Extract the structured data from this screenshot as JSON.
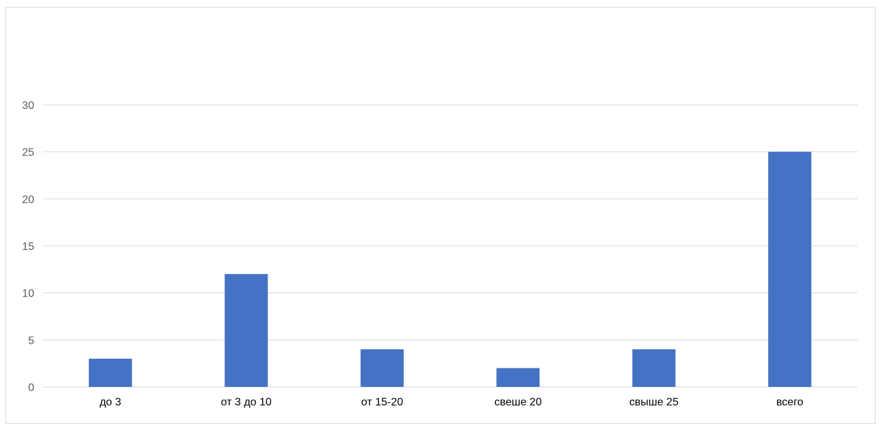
{
  "chart_data": {
    "type": "bar",
    "title": "",
    "xlabel": "",
    "ylabel": "",
    "categories": [
      "до 3",
      "от 3 до 10",
      "от 15-20",
      "свеше 20",
      "свыше 25",
      "всего"
    ],
    "values": [
      3,
      12,
      4,
      2,
      4,
      25
    ],
    "ylim": [
      0,
      30
    ],
    "yticks": [
      0,
      5,
      10,
      15,
      20,
      25,
      30
    ],
    "grid": true,
    "legend": "none",
    "bar_color": "#4472C4",
    "grid_color": "#D9D9D9"
  }
}
